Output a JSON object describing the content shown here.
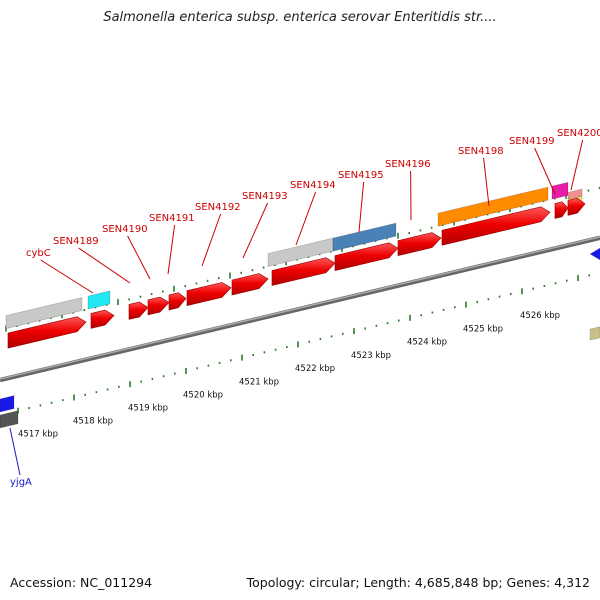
{
  "title": "Salmonella enterica subsp. enterica serovar Enteritidis str....",
  "footer": {
    "accession": "Accession: NC_011294",
    "summary": "Topology: circular; Length: 4,685,848 bp; Genes: 4,312"
  },
  "scale": {
    "ticks": [
      "4517 kbp",
      "4518 kbp",
      "4519 kbp",
      "4520 kbp",
      "4521 kbp",
      "4522 kbp",
      "4523 kbp",
      "4524 kbp",
      "4525 kbp",
      "4526 kbp"
    ]
  },
  "gene_labels": {
    "forward": [
      "cybC",
      "SEN4189",
      "SEN4190",
      "SEN4191",
      "SEN4192",
      "SEN4193",
      "SEN4194",
      "SEN4195",
      "SEN4196",
      "SEN4198",
      "SEN4199",
      "SEN4200"
    ],
    "reverse": [
      "yjgA"
    ]
  },
  "colors": {
    "cds": "#ee0000",
    "backbone": "#888888",
    "tick": "#2a7a2a",
    "label_forward": "#cc0000",
    "label_reverse": "#1a1acc",
    "feature_gray": "#c8c8c8",
    "feature_cyan": "#22e6f0",
    "feature_blue": "#4a82b8",
    "feature_orange": "#ff8c00",
    "feature_magenta": "#e81ea8",
    "feature_pink": "#f29090",
    "feature_yellow": "#f0e070",
    "feature_reverse_blue": "#1a1ae8",
    "feature_dark": "#555555",
    "feature_olive": "#c8c28a"
  }
}
